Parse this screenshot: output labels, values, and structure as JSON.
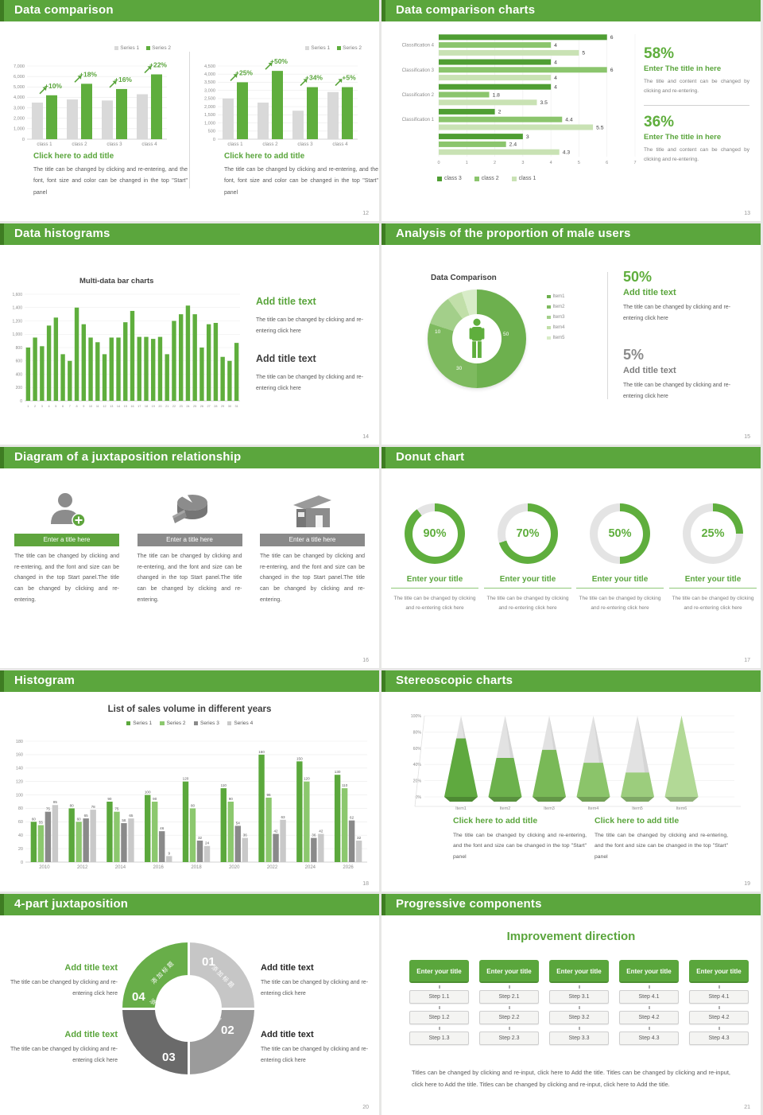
{
  "colors": {
    "header_green": "#5ba63d",
    "header_dark_green": "#3e7c22",
    "accent_green": "#5aa53c",
    "chart_green": "#5fae3d",
    "chart_green_mid": "#8bc56d",
    "chart_green_pale": "#c9e2b4",
    "bar_gray": "#d9d9d9",
    "dark_gray": "#8a8a8a",
    "light_gray": "#c8c8c8",
    "body_text": "#595959",
    "tick_text": "#8c8c8c",
    "page_bg": "#e7e7e5"
  },
  "slides": [
    {
      "title": "Data comparison",
      "page": "12",
      "halves": [
        {
          "legend": [
            "Series 1",
            "Series 2"
          ],
          "heading": "Click here to add title",
          "body": "The title can be changed by clicking and re-entering, and the font, font size and color can be changed in the top \"Start\" panel",
          "chart_data": {
            "type": "bar",
            "categories": [
              "class 1",
              "class 2",
              "class 3",
              "class 4"
            ],
            "series": [
              {
                "name": "Series 1",
                "color": "#d9d9d9",
                "values": [
                  3500,
                  3800,
                  3700,
                  4300
                ]
              },
              {
                "name": "Series 2",
                "color": "#5fae3d",
                "values": [
                  4200,
                  5300,
                  4800,
                  6200
                ]
              }
            ],
            "pct_labels": [
              "+10%",
              "+18%",
              "+16%",
              "+22%"
            ],
            "ylim": [
              0,
              7000
            ],
            "ystep": 1000
          }
        },
        {
          "legend": [
            "Series 1",
            "Series 2"
          ],
          "heading": "Click here to add title",
          "body": "The title can be changed by clicking and re-entering, and the font, font size and color can be changed in the top \"Start\" panel",
          "chart_data": {
            "type": "bar",
            "categories": [
              "class 1",
              "class 2",
              "class 3",
              "class 4"
            ],
            "series": [
              {
                "name": "Series 1",
                "color": "#d9d9d9",
                "values": [
                  2500,
                  2250,
                  1750,
                  2900
                ]
              },
              {
                "name": "Series 2",
                "color": "#5fae3d",
                "values": [
                  3500,
                  4200,
                  3200,
                  3200
                ]
              }
            ],
            "pct_labels": [
              "+25%",
              "+50%",
              "+34%",
              "+5%"
            ],
            "ylim": [
              0,
              4500
            ],
            "ystep": 500
          }
        }
      ]
    },
    {
      "title": "Data comparison charts",
      "page": "13",
      "chart_data": {
        "type": "bar-horizontal",
        "categories": [
          "Classification 4",
          "Classification 3",
          "Classification 2",
          "Classification 1",
          ""
        ],
        "series": [
          {
            "name": "class 3",
            "color": "#4f9e33",
            "values": [
              6,
              4,
              4,
              2,
              3
            ]
          },
          {
            "name": "class 2",
            "color": "#8bc56d",
            "values": [
              4,
              6,
              1.8,
              4.4,
              2.4
            ]
          },
          {
            "name": "class 1",
            "color": "#c9e2b4",
            "values": [
              5,
              4,
              3.5,
              5.5,
              4.3
            ]
          }
        ],
        "xlim": [
          0,
          7
        ],
        "legend": [
          "class 3",
          "class 2",
          "class 1"
        ]
      },
      "stats": [
        {
          "pct": "58%",
          "title": "Enter The title in here",
          "body": "The title and content can be changed by clicking and re-entering."
        },
        {
          "pct": "36%",
          "title": "Enter The title in here",
          "body": "The title and content can be changed by clicking and re-entering."
        }
      ]
    },
    {
      "title": "Data histograms",
      "page": "14",
      "chart_data": {
        "type": "bar",
        "title": "Multi-data bar charts",
        "categories": [
          "1",
          "2",
          "3",
          "4",
          "5",
          "6",
          "7",
          "8",
          "9",
          "10",
          "11",
          "12",
          "13",
          "14",
          "15",
          "16",
          "17",
          "18",
          "19",
          "20",
          "21",
          "22",
          "23",
          "24",
          "25",
          "26",
          "27",
          "28",
          "29",
          "30",
          "31"
        ],
        "values": [
          800,
          950,
          820,
          1130,
          1250,
          700,
          600,
          1400,
          1150,
          950,
          880,
          700,
          950,
          950,
          1180,
          1350,
          960,
          960,
          930,
          960,
          700,
          1200,
          1300,
          1430,
          1300,
          800,
          1150,
          1170,
          660,
          600,
          870
        ],
        "ylim": [
          0,
          1600
        ],
        "ystep": 200
      },
      "blocks": [
        {
          "heading": "Add title text",
          "style": "green",
          "body": "The title can be changed by clicking and re-entering click here"
        },
        {
          "heading": "Add title text",
          "style": "dark",
          "body": "The title can be changed by clicking and re-entering click here"
        }
      ]
    },
    {
      "title": "Analysis of the proportion of male users",
      "page": "15",
      "chart_data": {
        "type": "pie",
        "title": "Data Comparison",
        "labels": [
          "Item1",
          "Item2",
          "Item3",
          "Item4",
          "Item5"
        ],
        "values": [
          50,
          30,
          10,
          5,
          5
        ],
        "colors": [
          "#6db04e",
          "#7eba5f",
          "#a3cf8a",
          "#c1dfa9",
          "#d8ecc8"
        ],
        "visible_value_labels": [
          "50",
          "30",
          "10"
        ]
      },
      "stats": [
        {
          "pct": "50%",
          "heading": "Add title text",
          "style": "green",
          "body": "The title can be changed by clicking and re-entering click here"
        },
        {
          "pct": "5%",
          "heading": "Add title text",
          "style": "gray",
          "body": "The title can be changed by clicking and re-entering click here"
        }
      ]
    },
    {
      "title": "Diagram of a juxtaposition relationship",
      "page": "16",
      "items": [
        {
          "icon": "person-add-icon",
          "bar_label": "Enter a title here",
          "bar_style": "green",
          "body": "The title can be changed by clicking and re-entering, and the font and size can be changed in the top Start panel.The title can be changed by clicking and re-entering."
        },
        {
          "icon": "pie-chart-icon",
          "bar_label": "Enter a title here",
          "bar_style": "gray",
          "body": "The title can be changed by clicking and re-entering, and the font and size can be changed in the top Start panel.The title can be changed by clicking and re-entering."
        },
        {
          "icon": "building-icon",
          "bar_label": "Enter a title here",
          "bar_style": "gray",
          "body": "The title can be changed by clicking and re-entering, and the font and size can be changed in the top Start panel.The title can be changed by clicking and re-entering."
        }
      ]
    },
    {
      "title": "Donut chart",
      "page": "17",
      "donuts": [
        {
          "pct": 90,
          "pct_label": "90%",
          "heading": "Enter your title",
          "body": "The title can be changed by clicking and re-entering click here"
        },
        {
          "pct": 70,
          "pct_label": "70%",
          "heading": "Enter your title",
          "body": "The title can be changed by clicking and re-entering click here"
        },
        {
          "pct": 50,
          "pct_label": "50%",
          "heading": "Enter your title",
          "body": "The title can be changed by clicking and re-entering click here"
        },
        {
          "pct": 25,
          "pct_label": "25%",
          "heading": "Enter your title",
          "body": "The title can be changed by clicking and re-entering click here"
        }
      ]
    },
    {
      "title": "Histogram",
      "page": "18",
      "chart_data": {
        "type": "bar",
        "title": "List of sales volume in different years",
        "categories": [
          "2010",
          "2012",
          "2014",
          "2016",
          "2018",
          "2020",
          "2022",
          "2024",
          "2026"
        ],
        "series": [
          {
            "name": "Series 1",
            "color": "#5ba83c",
            "values": [
              60,
              80,
              90,
              100,
              120,
              110,
              160,
              150,
              130
            ]
          },
          {
            "name": "Series 2",
            "color": "#8cc86e",
            "values": [
              55,
              60,
              75,
              90,
              80,
              90,
              96,
              120,
              110
            ]
          },
          {
            "name": "Series 3",
            "color": "#8a8a8a",
            "values": [
              75,
              65,
              58,
              46,
              32,
              54,
              42,
              36,
              62
            ]
          },
          {
            "name": "Series 4",
            "color": "#c9c9c9",
            "values": [
              85,
              78,
              65,
              9,
              24,
              36,
              63,
              42,
              32
            ]
          }
        ],
        "ylim": [
          0,
          180
        ],
        "ystep": 20
      }
    },
    {
      "title": "Stereoscopic charts",
      "page": "19",
      "chart_data": {
        "type": "cone",
        "categories": [
          "Item1",
          "Item2",
          "Item3",
          "Item4",
          "Item5",
          "Item6"
        ],
        "values_pct": [
          72,
          48,
          58,
          42,
          30,
          100
        ],
        "cone_colors": [
          "#5fa93f",
          "#6cb14c",
          "#79b957",
          "#8bc46a",
          "#9ccd7d",
          "#b2d996"
        ],
        "yticks": [
          "0%",
          "20%",
          "40%",
          "60%",
          "80%",
          "100%"
        ]
      },
      "blocks": [
        {
          "heading": "Click here to add title",
          "body": "The title can be changed by clicking and re-entering, and the font and size can be changed in the top \"Start\" panel"
        },
        {
          "heading": "Click here to add title",
          "body": "The title can be changed by clicking and re-entering, and the font and size can be changed in the top \"Start\" panel"
        }
      ]
    },
    {
      "title": "4-part juxtaposition",
      "page": "20",
      "ring_segments": [
        {
          "num": "01",
          "label": "添加标题",
          "color": "#c6c6c6"
        },
        {
          "num": "02",
          "label": "添加标题",
          "color": "#9b9b9b"
        },
        {
          "num": "03",
          "label": "添加标题",
          "color": "#6a6a6a"
        },
        {
          "num": "04",
          "label": "添加标题",
          "color": "#68ae49"
        }
      ],
      "blocks": [
        {
          "heading": "Add title text",
          "style": "green",
          "side": "left",
          "body": "The title can be changed by clicking and re-entering click here"
        },
        {
          "heading": "Add title text",
          "style": "green",
          "side": "left",
          "body": "The title can be changed by clicking and re-entering click here"
        },
        {
          "heading": "Add title text",
          "style": "dark",
          "side": "right",
          "body": "The title can be changed by clicking and re-entering click here"
        },
        {
          "heading": "Add title text",
          "style": "dark",
          "side": "right",
          "body": "The title can be changed by clicking and re-entering click here"
        }
      ]
    },
    {
      "title": "Progressive components",
      "page": "21",
      "subtitle": "Improvement direction",
      "column_header": "Enter your title",
      "columns": [
        [
          "Step 1.1",
          "Step 1.2",
          "Step 1.3"
        ],
        [
          "Step 2.1",
          "Step 2.2",
          "Step 2.3"
        ],
        [
          "Step 3.1",
          "Step 3.2",
          "Step 3.3"
        ],
        [
          "Step 4.1",
          "Step 4.2",
          "Step 4.3"
        ],
        [
          "Step 4.1",
          "Step 4.2",
          "Step 4.3"
        ]
      ],
      "footer": "Titles can be changed by clicking and re-input, click here to Add the title. Titles can be changed by clicking and re-input, click here to Add the title. Titles can be changed by clicking and re-input, click here to Add the title."
    }
  ]
}
